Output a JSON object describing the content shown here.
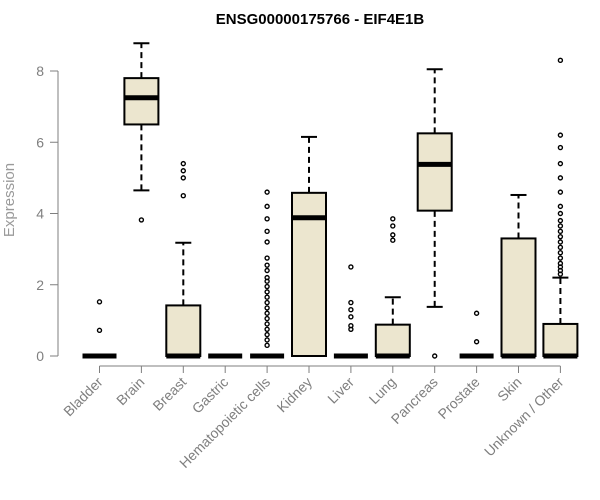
{
  "chart_data": {
    "type": "boxplot",
    "title": "ENSG00000175766 - EIF4E1B",
    "xlabel": "",
    "ylabel": "Expression",
    "ylim": [
      0,
      8.8
    ],
    "yticks": [
      0,
      2,
      4,
      6,
      8
    ],
    "box_fill": "#ece6cf",
    "categories": [
      "Bladder",
      "Brain",
      "Breast",
      "Gastric",
      "Hematopoietic cells",
      "Kidney",
      "Liver",
      "Lung",
      "Pancreas",
      "Prostate",
      "Skin",
      "Unknown / Other"
    ],
    "boxes": [
      {
        "name": "Bladder",
        "whisker_low": 0,
        "q1": 0,
        "median": 0,
        "q3": 0,
        "whisker_high": 0,
        "outliers": [
          0.72,
          1.52
        ]
      },
      {
        "name": "Brain",
        "whisker_low": 4.65,
        "q1": 6.5,
        "median": 7.25,
        "q3": 7.8,
        "whisker_high": 8.78,
        "outliers": [
          3.82
        ]
      },
      {
        "name": "Breast",
        "whisker_low": 0,
        "q1": 0,
        "median": 0,
        "q3": 1.42,
        "whisker_high": 3.18,
        "outliers": [
          4.5,
          5.0,
          5.2,
          5.4
        ]
      },
      {
        "name": "Gastric",
        "whisker_low": 0,
        "q1": 0,
        "median": 0,
        "q3": 0,
        "whisker_high": 0,
        "outliers": []
      },
      {
        "name": "Hematopoietic cells",
        "whisker_low": 0,
        "q1": 0,
        "median": 0,
        "q3": 0,
        "whisker_high": 0,
        "outliers": [
          0.3,
          0.45,
          0.6,
          0.75,
          0.9,
          1.05,
          1.2,
          1.35,
          1.5,
          1.65,
          1.8,
          1.95,
          2.1,
          2.2,
          2.4,
          2.55,
          2.75,
          3.2,
          3.5,
          3.85,
          4.2,
          4.6
        ]
      },
      {
        "name": "Kidney",
        "whisker_low": 0,
        "q1": 0,
        "median": 3.88,
        "q3": 4.58,
        "whisker_high": 6.15,
        "outliers": []
      },
      {
        "name": "Liver",
        "whisker_low": 0,
        "q1": 0,
        "median": 0,
        "q3": 0,
        "whisker_high": 0,
        "outliers": [
          0.75,
          0.85,
          1.1,
          1.3,
          1.5,
          2.5
        ]
      },
      {
        "name": "Lung",
        "whisker_low": 0,
        "q1": 0,
        "median": 0,
        "q3": 0.88,
        "whisker_high": 1.65,
        "outliers": [
          3.25,
          3.4,
          3.65,
          3.85
        ]
      },
      {
        "name": "Pancreas",
        "whisker_low": 1.38,
        "q1": 4.08,
        "median": 5.38,
        "q3": 6.25,
        "whisker_high": 8.05,
        "outliers": [
          0.0
        ]
      },
      {
        "name": "Prostate",
        "whisker_low": 0,
        "q1": 0,
        "median": 0,
        "q3": 0,
        "whisker_high": 0,
        "outliers": [
          0.4,
          1.2
        ]
      },
      {
        "name": "Skin",
        "whisker_low": 0,
        "q1": 0,
        "median": 0,
        "q3": 3.3,
        "whisker_high": 4.52,
        "outliers": []
      },
      {
        "name": "Unknown / Other",
        "whisker_low": 0,
        "q1": 0,
        "median": 0,
        "q3": 0.9,
        "whisker_high": 2.2,
        "outliers": [
          2.3,
          2.4,
          2.5,
          2.6,
          2.75,
          2.9,
          3.05,
          3.2,
          3.35,
          3.5,
          3.65,
          3.8,
          4.0,
          4.2,
          4.6,
          5.0,
          5.4,
          5.85,
          6.2,
          8.3
        ]
      }
    ]
  }
}
